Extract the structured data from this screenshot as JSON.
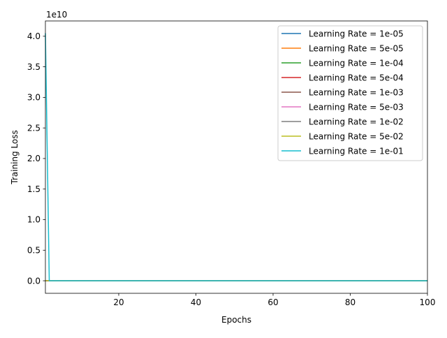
{
  "chart_data": {
    "type": "line",
    "xlabel": "Epochs",
    "ylabel": "Training Loss",
    "offset_text": "1e10",
    "xlim": [
      1,
      100
    ],
    "ylim": [
      -2.05,
      42.5
    ],
    "x_ticks": [
      20,
      40,
      60,
      80,
      100
    ],
    "x_tick_labels": [
      "20",
      "40",
      "60",
      "80",
      "100"
    ],
    "y_ticks": [
      0.0,
      5.0,
      10.0,
      15.0,
      20.0,
      25.0,
      30.0,
      35.0,
      40.0
    ],
    "y_tick_labels": [
      "0.0",
      "0.5",
      "1.0",
      "1.5",
      "2.0",
      "2.5",
      "3.0",
      "3.5",
      "4.0"
    ],
    "legend_position": "top-right",
    "grid": false,
    "x": [
      1,
      2,
      100
    ],
    "series": [
      {
        "name": "Learning Rate = 1e-05",
        "color": "#1f77b4",
        "values": [
          0,
          0,
          0
        ]
      },
      {
        "name": "Learning Rate = 5e-05",
        "color": "#ff7f0e",
        "values": [
          0,
          0,
          0
        ]
      },
      {
        "name": "Learning Rate = 1e-04",
        "color": "#2ca02c",
        "values": [
          0,
          0,
          0
        ]
      },
      {
        "name": "Learning Rate = 5e-04",
        "color": "#d62728",
        "values": [
          0,
          0,
          0
        ]
      },
      {
        "name": "Learning Rate = 1e-03",
        "color": "#8c564b",
        "values": [
          0,
          0,
          0
        ]
      },
      {
        "name": "Learning Rate = 5e-03",
        "color": "#e377c2",
        "values": [
          0,
          0,
          0
        ]
      },
      {
        "name": "Learning Rate = 1e-02",
        "color": "#7f7f7f",
        "values": [
          0,
          0,
          0
        ]
      },
      {
        "name": "Learning Rate = 5e-02",
        "color": "#bcbd22",
        "values": [
          0,
          0,
          0
        ]
      },
      {
        "name": "Learning Rate = 1e-01",
        "color": "#17becf",
        "values": [
          40.5,
          0,
          0
        ]
      }
    ]
  }
}
